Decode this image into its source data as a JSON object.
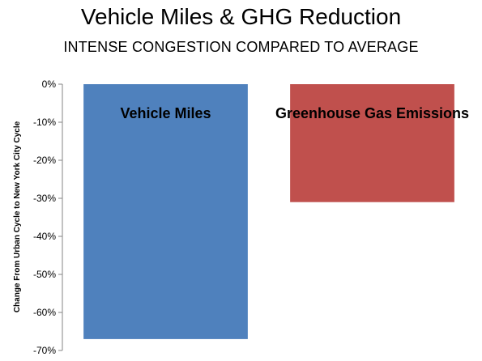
{
  "chart_data": {
    "type": "bar",
    "title": "Vehicle Miles & GHG Reduction",
    "subtitle": "INTENSE CONGESTION COMPARED TO AVERAGE",
    "ylabel": "Change From Urban Cycle to New York City Cycle",
    "xlabel": "",
    "categories": [
      "Vehicle Miles",
      "Greenhouse Gas Emissions"
    ],
    "values": [
      -67,
      -31
    ],
    "colors": [
      "#4f81bd",
      "#c0504d"
    ],
    "ylim": [
      -70,
      0
    ],
    "yticks": [
      0,
      -10,
      -20,
      -30,
      -40,
      -50,
      -60,
      -70
    ],
    "ytick_labels": [
      "0%",
      "-10%",
      "-20%",
      "-30%",
      "-40%",
      "-50%",
      "-60%",
      "-70%"
    ],
    "grid": false,
    "legend": "none"
  }
}
